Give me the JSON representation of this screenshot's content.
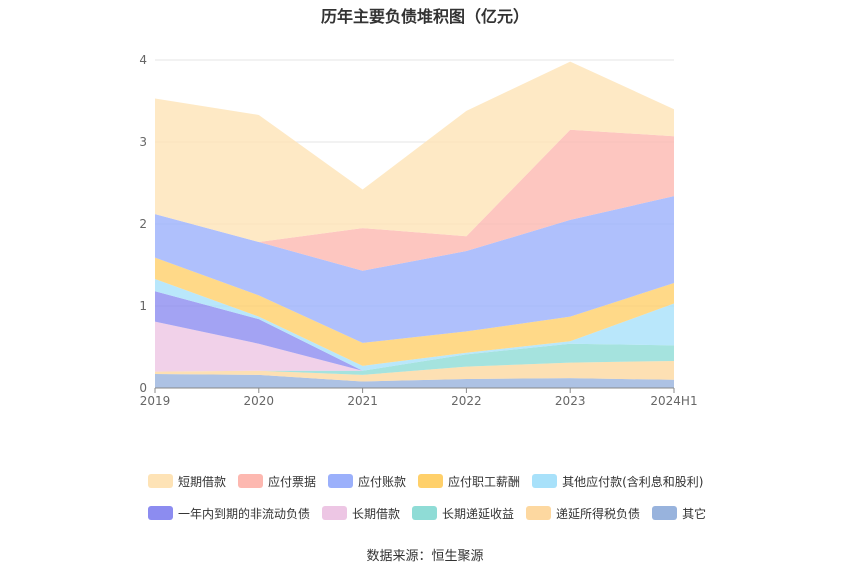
{
  "title": "历年主要负债堆积图（亿元）",
  "source": "数据来源：恒生聚源",
  "chart_data": {
    "type": "area",
    "stacked": true,
    "categories": [
      "2019",
      "2020",
      "2021",
      "2022",
      "2023",
      "2024H1"
    ],
    "ylim": [
      0,
      4
    ],
    "yticks": [
      0,
      1,
      2,
      3,
      4
    ],
    "grid": true,
    "legend_position": "bottom",
    "series": [
      {
        "name": "其它",
        "color": "#98b3dd",
        "values": [
          0.17,
          0.16,
          0.08,
          0.11,
          0.12,
          0.1
        ]
      },
      {
        "name": "递延所得税负债",
        "color": "#fdd8a0",
        "values": [
          0.03,
          0.05,
          0.08,
          0.15,
          0.19,
          0.23
        ]
      },
      {
        "name": "长期递延收益",
        "color": "#8fdcd6",
        "values": [
          0.0,
          0.0,
          0.05,
          0.15,
          0.23,
          0.19
        ]
      },
      {
        "name": "长期借款",
        "color": "#edc6e4",
        "values": [
          0.61,
          0.33,
          0.0,
          0.0,
          0.0,
          0.0
        ]
      },
      {
        "name": "一年内到期的非流动负债",
        "color": "#8c8cf0",
        "values": [
          0.37,
          0.3,
          0.0,
          0.0,
          0.0,
          0.0
        ]
      },
      {
        "name": "其他应付款(含利息和股利)",
        "color": "#a8e1fa",
        "values": [
          0.15,
          0.03,
          0.06,
          0.02,
          0.03,
          0.51
        ]
      },
      {
        "name": "应付职工薪酬",
        "color": "#ffd06a",
        "values": [
          0.26,
          0.26,
          0.28,
          0.26,
          0.3,
          0.25
        ]
      },
      {
        "name": "应付账款",
        "color": "#9bb0fb",
        "values": [
          0.53,
          0.65,
          0.88,
          0.98,
          1.18,
          1.06
        ]
      },
      {
        "name": "应付票据",
        "color": "#fdb8b0",
        "values": [
          0.0,
          0.0,
          0.52,
          0.18,
          1.1,
          0.73
        ]
      },
      {
        "name": "短期借款",
        "color": "#fee3b6",
        "values": [
          1.41,
          1.55,
          0.47,
          1.53,
          0.83,
          0.33
        ]
      }
    ],
    "legend_order": [
      "短期借款",
      "应付票据",
      "应付账款",
      "应付职工薪酬",
      "其他应付款(含利息和股利)",
      "一年内到期的非流动负债",
      "长期借款",
      "长期递延收益",
      "递延所得税负债",
      "其它"
    ]
  }
}
